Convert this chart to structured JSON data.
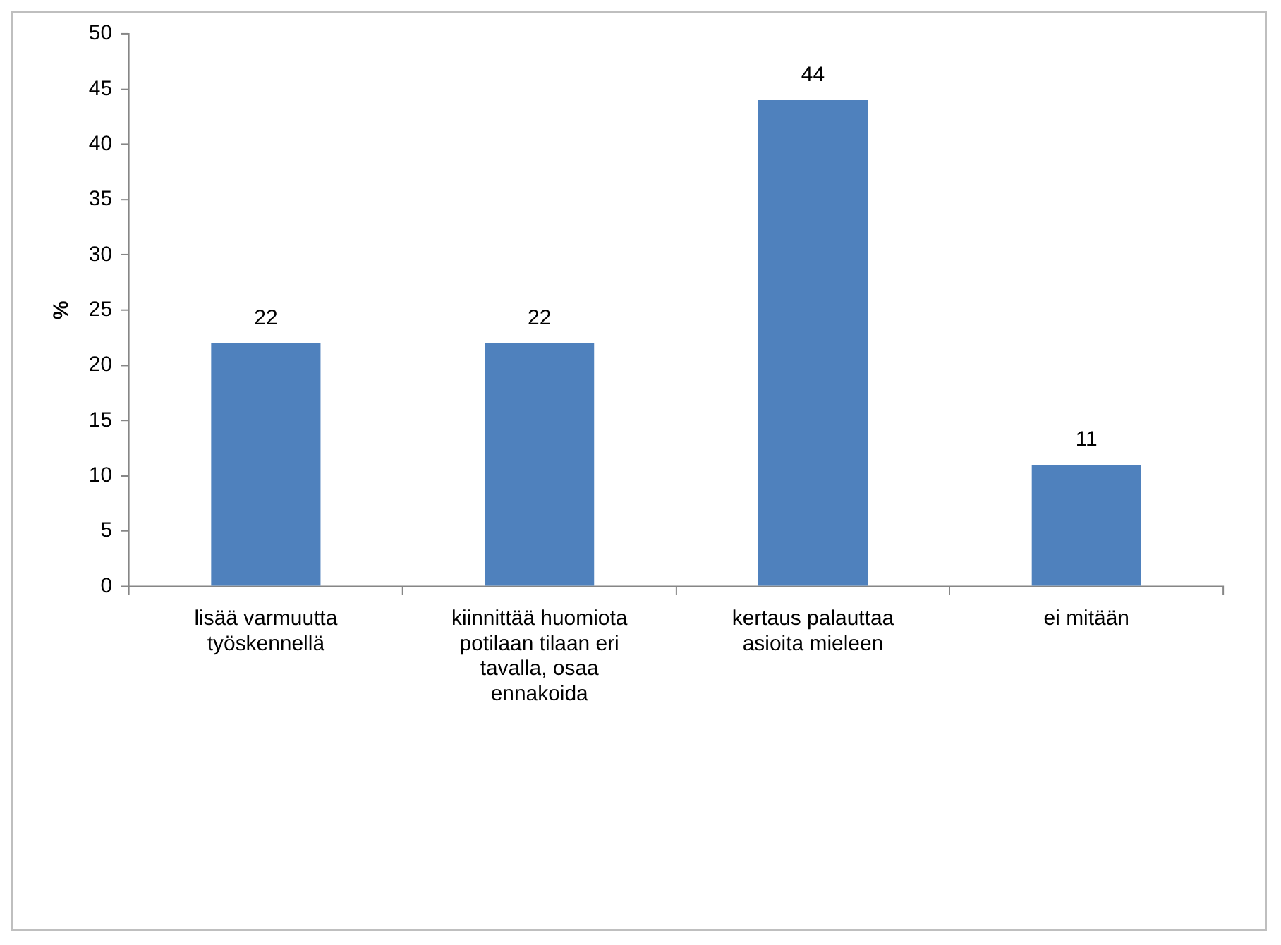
{
  "chart_data": {
    "type": "bar",
    "ylabel": "%",
    "categories": [
      "lisää varmuutta työskennellä",
      "kiinnittää huomiota potilaan tilaan eri tavalla, osaa ennakoida",
      "kertaus palauttaa asioita mieleen",
      "ei mitään"
    ],
    "values": [
      22,
      22,
      44,
      11
    ],
    "color": "#4f81bd",
    "ylim": [
      0,
      50
    ],
    "yticks": [
      0,
      5,
      10,
      15,
      20,
      25,
      30,
      35,
      40,
      45,
      50
    ],
    "grid": false,
    "legend": false,
    "data_labels": true
  }
}
